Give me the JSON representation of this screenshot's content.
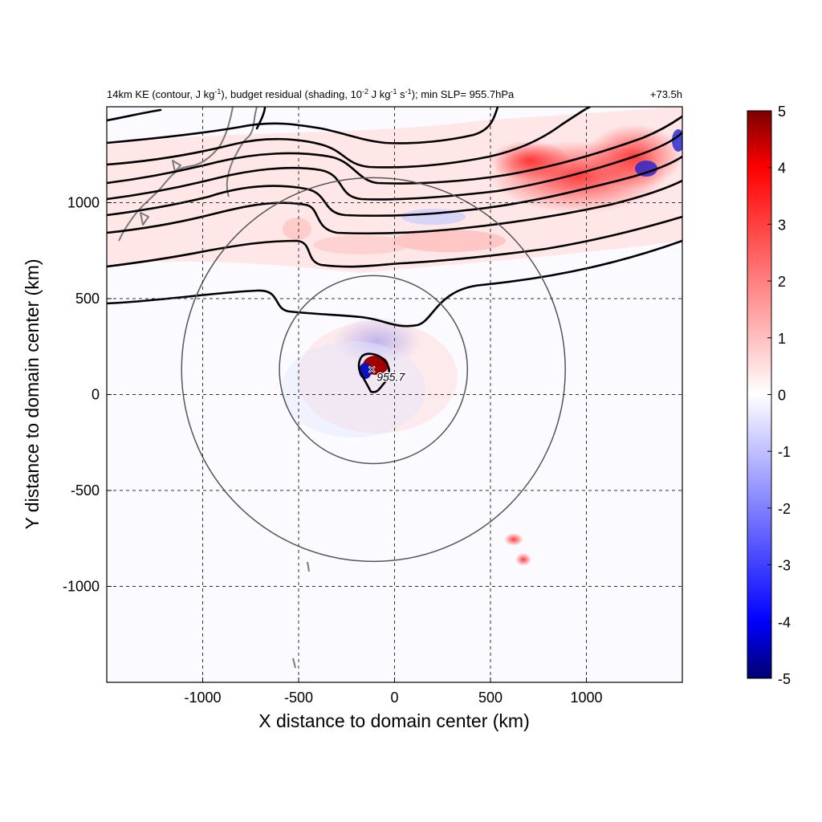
{
  "figure": {
    "title_left": "14km KE (contour, J kg",
    "title_left_sup1": "-1",
    "title_left_mid": "), budget residual (shading, 10",
    "title_left_sup2": "-2",
    "title_left_mid2": " J kg",
    "title_left_sup3": "-1",
    "title_left_mid3": " s",
    "title_left_sup4": "-1",
    "title_left_end": "); min SLP= 955.7hPa",
    "title_right": "+73.5h"
  },
  "chart_data": {
    "type": "heatmap",
    "xlabel": "X distance to domain center (km)",
    "ylabel": "Y distance to domain center (km)",
    "xlim": [
      -1500,
      1500
    ],
    "ylim": [
      -1500,
      1500
    ],
    "xticks": [
      -1000,
      -500,
      0,
      500,
      1000
    ],
    "yticks": [
      -1000,
      -500,
      0,
      500,
      1000
    ],
    "xtick_labels": [
      "-1000",
      "-500",
      "0",
      "500",
      "1000"
    ],
    "ytick_labels": [
      "-1000",
      "-500",
      "0",
      "500",
      "1000"
    ],
    "grid": true,
    "colorbar": {
      "min": -5,
      "max": 5,
      "ticks": [
        5,
        4,
        3,
        2,
        1,
        0,
        -1,
        -2,
        -3,
        -4,
        -5
      ],
      "tick_labels": [
        "5",
        "4",
        "3",
        "2",
        "1",
        "0",
        "-1",
        "-2",
        "-3",
        "-4",
        "-5"
      ],
      "colors": {
        "min": "#00006e",
        "neg": "#0000ff",
        "zero": "#ffffff",
        "pos": "#ff0000",
        "max": "#7a0000"
      }
    },
    "storm_center": {
      "x": -110,
      "y": 130,
      "label": "955.7"
    },
    "circles": [
      {
        "cx": -110,
        "cy": 130,
        "r": 490
      },
      {
        "cx": -110,
        "cy": 130,
        "r": 1000
      }
    ]
  }
}
